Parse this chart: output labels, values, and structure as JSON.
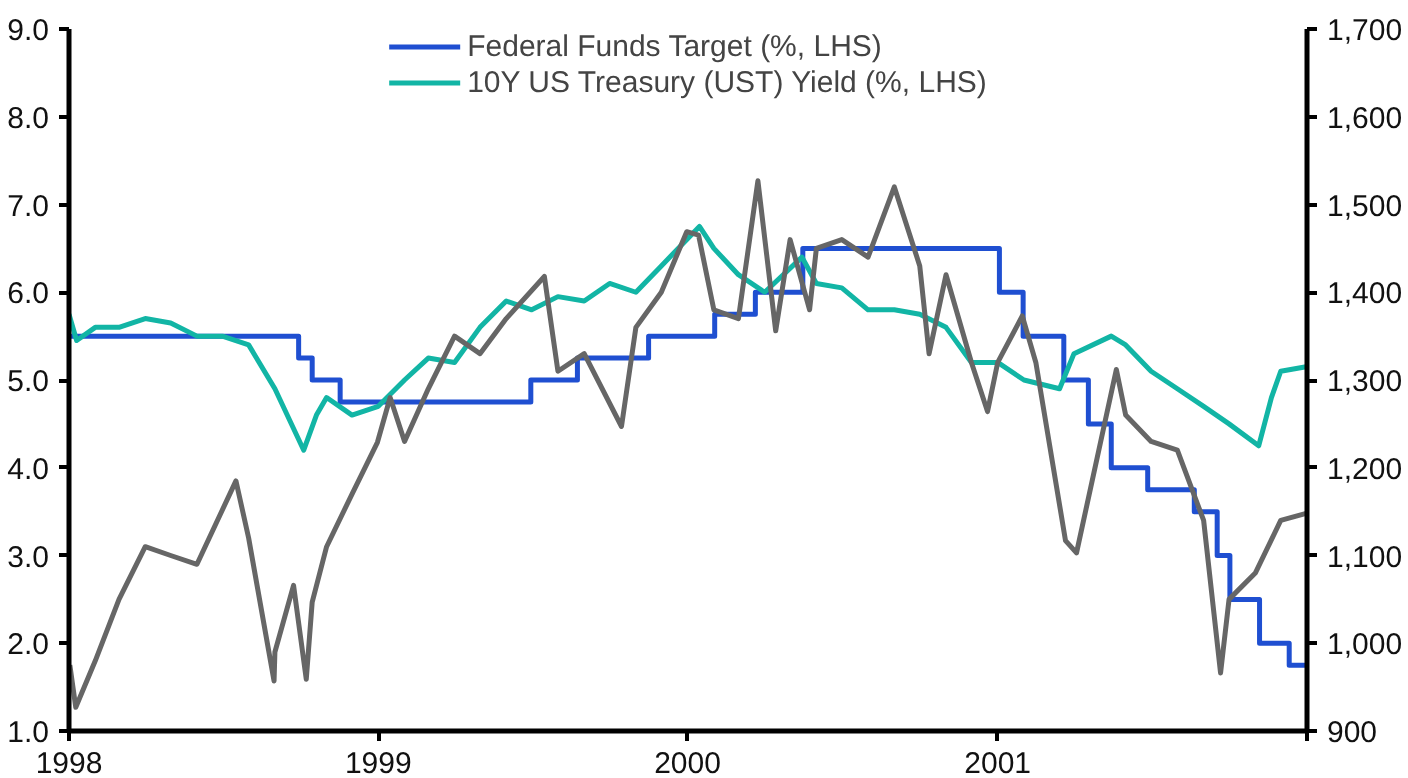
{
  "chart_data": {
    "type": "line",
    "xlim": [
      "1998-01-01",
      "2002-01-01"
    ],
    "xticks": [
      "1998",
      "1999",
      "2000",
      "2001",
      {
        "value": "2002",
        "label": null
      }
    ],
    "ylim": [
      1.0,
      9.0
    ],
    "yticks": [
      {
        "value": 1,
        "label": "1.0"
      },
      {
        "value": 2,
        "label": "2.0"
      },
      {
        "value": 3,
        "label": "3.0"
      },
      {
        "value": 4,
        "label": "4.0"
      },
      {
        "value": 5,
        "label": "5.0"
      },
      {
        "value": 6,
        "label": "6.0"
      },
      {
        "value": 7,
        "label": "7.0"
      },
      {
        "value": 8,
        "label": "8.0"
      },
      {
        "value": 9,
        "label": "9.0"
      }
    ],
    "y2lim": [
      900,
      1700
    ],
    "y2ticks": [
      {
        "value": 900,
        "label": "900"
      },
      {
        "value": 1000,
        "label": "1,000"
      },
      {
        "value": 1100,
        "label": "1,100"
      },
      {
        "value": 1200,
        "label": "1,200"
      },
      {
        "value": 1300,
        "label": "1,300"
      },
      {
        "value": 1400,
        "label": "1,400"
      },
      {
        "value": 1500,
        "label": "1,500"
      },
      {
        "value": 1600,
        "label": "1,600"
      },
      {
        "value": 1700,
        "label": "1,700"
      }
    ],
    "grid": false,
    "legend": "top",
    "series": [
      {
        "name": "Federal Funds Target (%, LHS)",
        "type": "step",
        "color": "#1f4fd1",
        "x": [
          "1998-01-01",
          "1998-09-29",
          "1998-10-15",
          "1998-11-17",
          "1999-06-30",
          "1999-08-24",
          "1999-11-16",
          "2000-02-02",
          "2000-03-21",
          "2000-05-16",
          "2001-01-03",
          "2001-01-31",
          "2001-03-20",
          "2001-04-18",
          "2001-05-15",
          "2001-06-27",
          "2001-08-21",
          "2001-09-17",
          "2001-10-02",
          "2001-11-06",
          "2001-12-11",
          "2001-12-31"
        ],
        "values": [
          5.5,
          5.25,
          5.0,
          4.75,
          5.0,
          5.25,
          5.5,
          5.75,
          6.0,
          6.5,
          6.0,
          5.5,
          5.0,
          4.5,
          4.0,
          3.75,
          3.5,
          3.0,
          2.5,
          2.0,
          1.75,
          1.75
        ]
      },
      {
        "name": "10Y US Treasury (UST) Yield (%, LHS)",
        "type": "line",
        "color": "#12b5a5",
        "x": [
          "1998-01-01",
          "1998-01-10",
          "1998-02-01",
          "1998-03-01",
          "1998-04-01",
          "1998-05-01",
          "1998-06-01",
          "1998-07-01",
          "1998-08-01",
          "1998-09-01",
          "1998-10-05",
          "1998-10-20",
          "1998-11-01",
          "1998-12-01",
          "1999-01-01",
          "1999-02-01",
          "1999-03-01",
          "1999-04-01",
          "1999-05-01",
          "1999-06-01",
          "1999-07-01",
          "1999-08-01",
          "1999-09-01",
          "1999-10-01",
          "1999-11-01",
          "1999-12-01",
          "2000-01-15",
          "2000-02-01",
          "2000-03-01",
          "2000-04-01",
          "2000-05-15",
          "2000-06-01",
          "2000-07-01",
          "2000-08-01",
          "2000-09-01",
          "2000-10-01",
          "2000-11-01",
          "2000-12-01",
          "2001-01-01",
          "2001-02-01",
          "2001-03-15",
          "2001-04-01",
          "2001-05-15",
          "2001-06-01",
          "2001-07-01",
          "2001-08-01",
          "2001-09-01",
          "2001-10-01",
          "2001-11-05",
          "2001-11-20",
          "2001-12-01",
          "2001-12-31"
        ],
        "values": [
          5.75,
          5.45,
          5.6,
          5.6,
          5.7,
          5.65,
          5.5,
          5.5,
          5.4,
          4.9,
          4.2,
          4.6,
          4.8,
          4.6,
          4.7,
          5.0,
          5.25,
          5.2,
          5.6,
          5.9,
          5.8,
          5.95,
          5.9,
          6.1,
          6.0,
          6.3,
          6.75,
          6.5,
          6.2,
          6.0,
          6.4,
          6.1,
          6.05,
          5.8,
          5.8,
          5.75,
          5.6,
          5.2,
          5.2,
          5.0,
          4.9,
          5.3,
          5.5,
          5.4,
          5.1,
          4.9,
          4.7,
          4.5,
          4.25,
          4.8,
          5.1,
          5.15
        ]
      },
      {
        "axis": "y2",
        "color": "#666666",
        "x": [
          "1998-01-02",
          "1998-01-09",
          "1998-02-01",
          "1998-03-01",
          "1998-04-01",
          "1998-05-01",
          "1998-06-01",
          "1998-07-17",
          "1998-08-01",
          "1998-08-31",
          "1998-09-01",
          "1998-09-23",
          "1998-10-08",
          "1998-10-15",
          "1998-11-01",
          "1998-12-01",
          "1998-12-31",
          "1999-01-15",
          "1999-02-01",
          "1999-03-01",
          "1999-04-01",
          "1999-05-01",
          "1999-06-01",
          "1999-07-16",
          "1999-08-01",
          "1999-09-01",
          "1999-10-15",
          "1999-11-01",
          "1999-12-01",
          "1999-12-31",
          "2000-01-14",
          "2000-02-01",
          "2000-03-01",
          "2000-03-24",
          "2000-04-14",
          "2000-05-01",
          "2000-05-24",
          "2000-06-01",
          "2000-07-01",
          "2000-08-01",
          "2000-09-01",
          "2000-10-01",
          "2000-10-12",
          "2000-11-01",
          "2000-12-01",
          "2000-12-20",
          "2001-01-01",
          "2001-01-30",
          "2001-02-15",
          "2001-03-22",
          "2001-04-04",
          "2001-05-21",
          "2001-06-01",
          "2001-07-01",
          "2001-08-01",
          "2001-09-01",
          "2001-09-21",
          "2001-10-01",
          "2001-11-01",
          "2001-12-01",
          "2001-12-31"
        ],
        "values": [
          975,
          927,
          980,
          1050,
          1110,
          1100,
          1090,
          1185,
          1120,
          957,
          990,
          1066,
          959,
          1047,
          1110,
          1170,
          1229,
          1280,
          1230,
          1290,
          1350,
          1330,
          1370,
          1418,
          1310,
          1330,
          1247,
          1360,
          1400,
          1469,
          1465,
          1380,
          1370,
          1527,
          1356,
          1460,
          1380,
          1450,
          1460,
          1440,
          1520,
          1430,
          1330,
          1420,
          1320,
          1264,
          1320,
          1373,
          1320,
          1117,
          1103,
          1312,
          1260,
          1230,
          1220,
          1140,
          966,
          1050,
          1080,
          1140,
          1148
        ]
      }
    ]
  }
}
